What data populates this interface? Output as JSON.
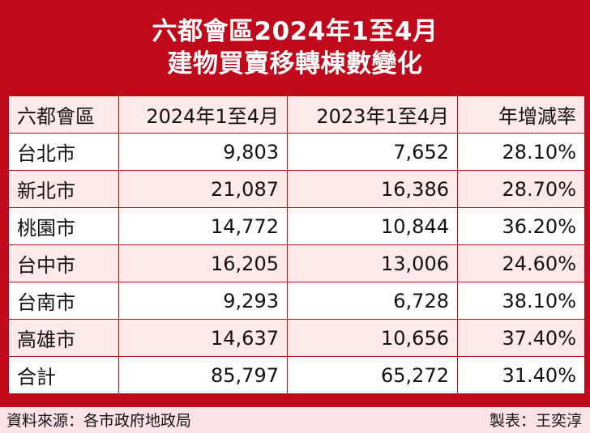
{
  "title": {
    "line1": "六都會區2024年1至4月",
    "line2": "建物買賣移轉棟數變化"
  },
  "chart_data": {
    "type": "table",
    "columns": [
      "六都會區",
      "2024年1至4月",
      "2023年1至4月",
      "年增減率"
    ],
    "rows": [
      [
        "台北市",
        "9,803",
        "7,652",
        "28.10%"
      ],
      [
        "新北市",
        "21,087",
        "16,386",
        "28.70%"
      ],
      [
        "桃園市",
        "14,772",
        "10,844",
        "36.20%"
      ],
      [
        "台中市",
        "16,205",
        "13,006",
        "24.60%"
      ],
      [
        "台南市",
        "9,293",
        "6,728",
        "38.10%"
      ],
      [
        "高雄市",
        "14,637",
        "10,656",
        "37.40%"
      ],
      [
        "合計",
        "85,797",
        "65,272",
        "31.40%"
      ]
    ]
  },
  "footer": {
    "source": "資料來源：各市政府地政局",
    "maker": "製表：王奕淳"
  },
  "colors": {
    "brand_red": "#c00a1c",
    "row_tint": "#fde8ea"
  }
}
